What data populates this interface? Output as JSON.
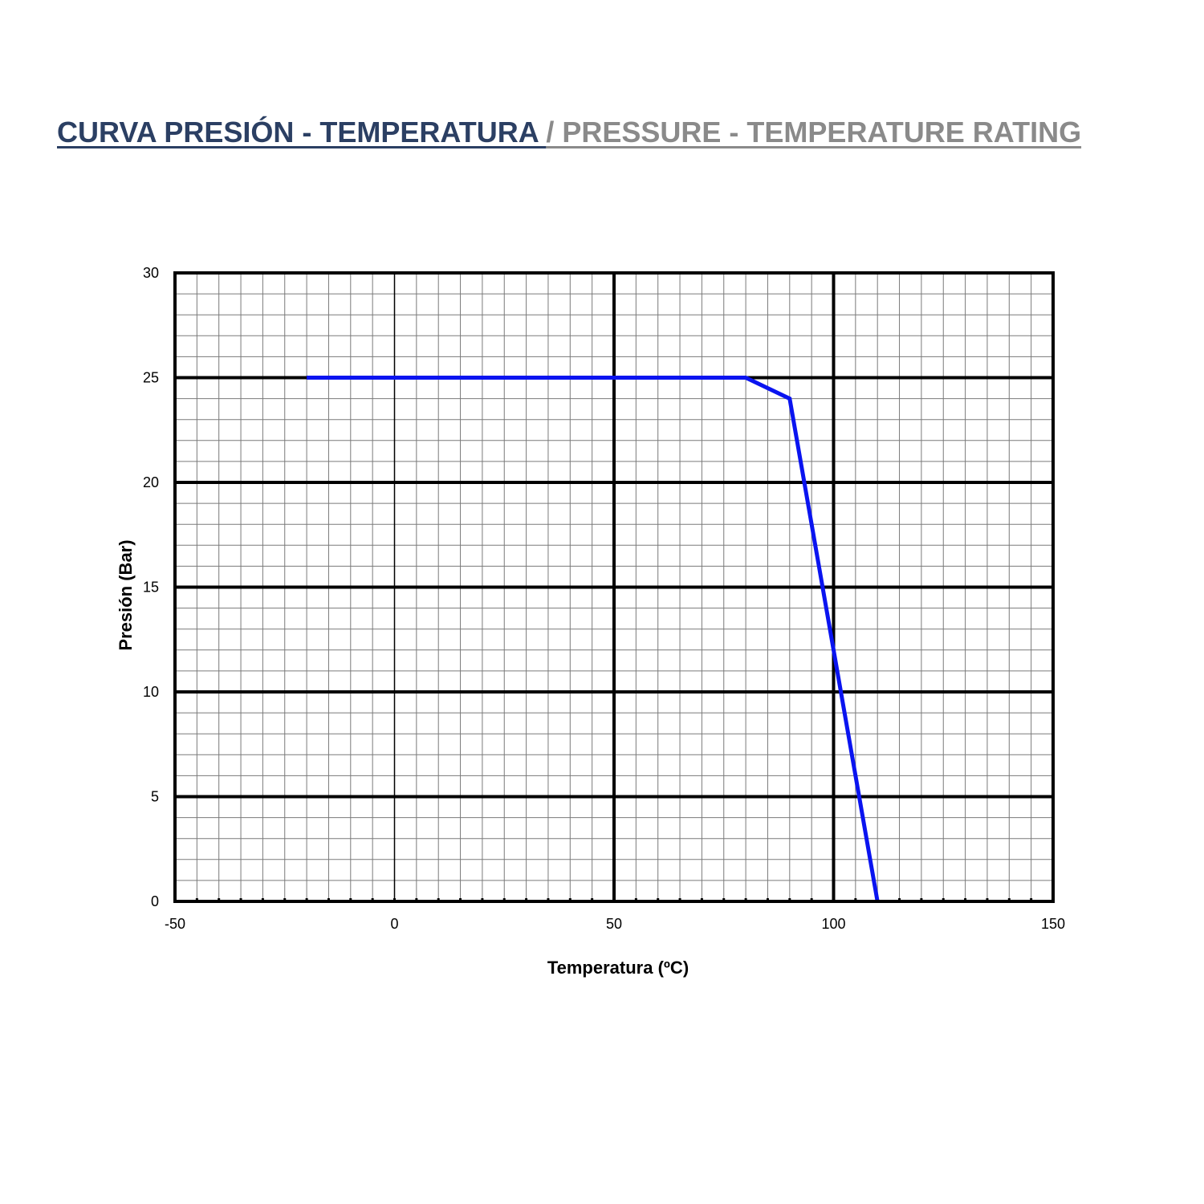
{
  "title": {
    "spanish": "CURVA PRESIÓN - TEMPERATURA ",
    "english": "/ PRESSURE - TEMPERATURE RATING"
  },
  "colors": {
    "title_spanish": "#2b3f63",
    "title_english": "#8a8a8a",
    "series": "#0a14f0",
    "grid_major": "#000000",
    "grid_minor": "#7a7a7a"
  },
  "chart_data": {
    "type": "line",
    "xlabel": "Temperatura (ºC)",
    "ylabel": "Presión  (Bar)",
    "xlim": [
      -50,
      150
    ],
    "ylim": [
      0,
      30
    ],
    "x_ticks": [
      "-50",
      "0",
      "50",
      "100",
      "150"
    ],
    "y_ticks": [
      "0",
      "5",
      "10",
      "15",
      "20",
      "25",
      "30"
    ],
    "grid": true,
    "legend": "none",
    "series": [
      {
        "x": [
          -20,
          80,
          90,
          110
        ],
        "y": [
          25,
          25,
          24,
          0
        ]
      }
    ]
  }
}
